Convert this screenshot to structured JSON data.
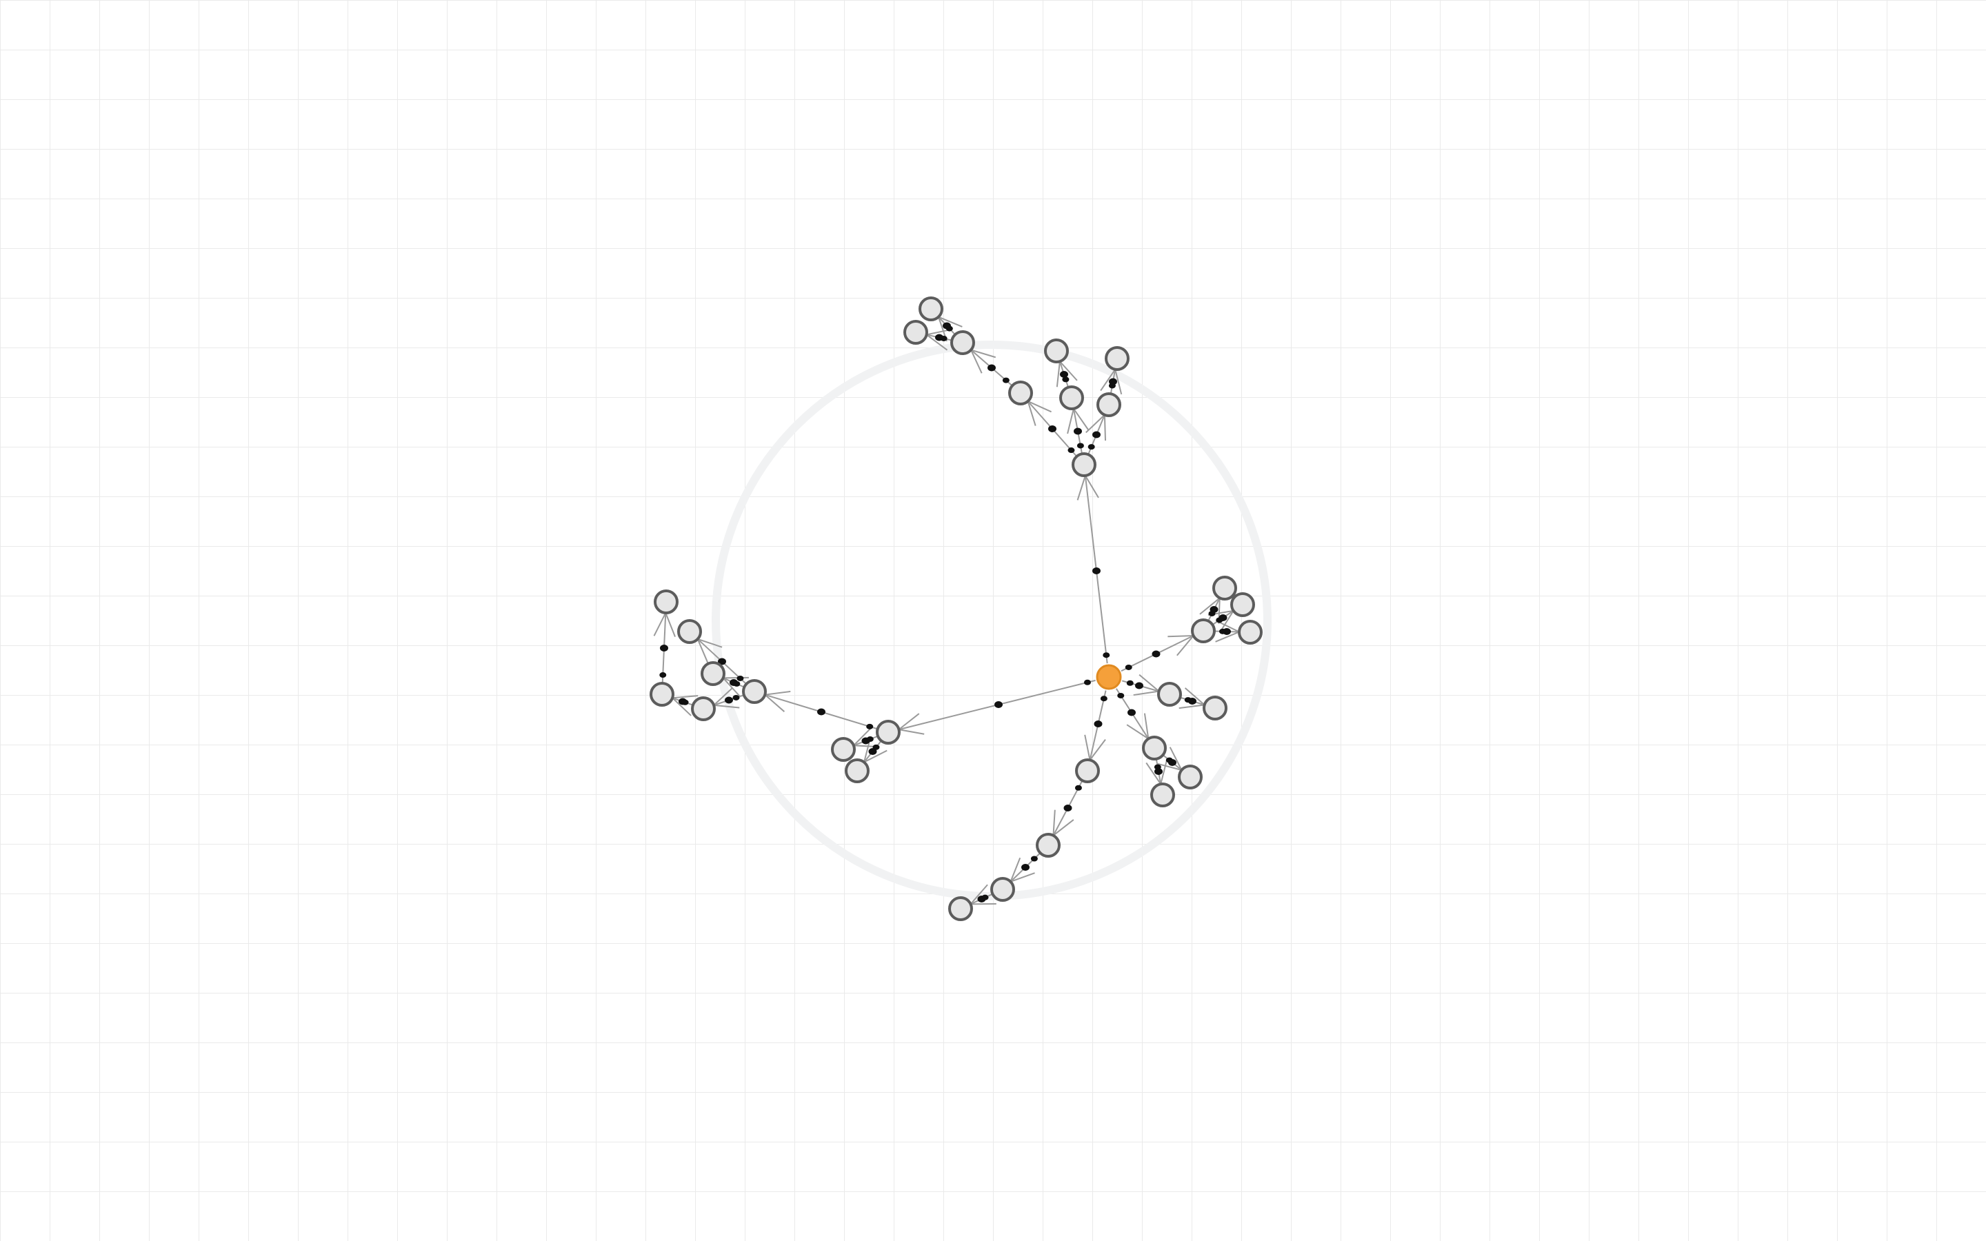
{
  "graph": {
    "root": "root",
    "colors": {
      "background": "#ffffff",
      "grid": "#eaeaea",
      "node_fill": "#e6e6e6",
      "node_stroke": "#5c5c5c",
      "root_fill": "#f5a03a",
      "edge": "#9a9a9a",
      "edge_dot": "#111111"
    },
    "edges": [
      [
        "root",
        "a1"
      ],
      [
        "a1",
        "a2"
      ],
      [
        "a1",
        "a3"
      ],
      [
        "a1",
        "a4"
      ],
      [
        "a2",
        "a5"
      ],
      [
        "a5",
        "a6"
      ],
      [
        "a5",
        "a7"
      ],
      [
        "a3",
        "a8"
      ],
      [
        "a4",
        "a9"
      ],
      [
        "root",
        "b1"
      ],
      [
        "b1",
        "b2"
      ],
      [
        "b1",
        "b3"
      ],
      [
        "b1",
        "b4"
      ],
      [
        "root",
        "c1"
      ],
      [
        "c1",
        "c2"
      ],
      [
        "root",
        "d1"
      ],
      [
        "d1",
        "d2"
      ],
      [
        "d1",
        "d3"
      ],
      [
        "root",
        "e1"
      ],
      [
        "e1",
        "e2"
      ],
      [
        "e2",
        "e3"
      ],
      [
        "e3",
        "e4"
      ],
      [
        "root",
        "f1"
      ],
      [
        "f1",
        "f2"
      ],
      [
        "f1",
        "f3"
      ],
      [
        "f1",
        "f4"
      ],
      [
        "f4",
        "f5"
      ],
      [
        "f4",
        "f6"
      ],
      [
        "f6",
        "f7"
      ],
      [
        "f7",
        "f8"
      ],
      [
        "f4",
        "f9"
      ]
    ]
  }
}
